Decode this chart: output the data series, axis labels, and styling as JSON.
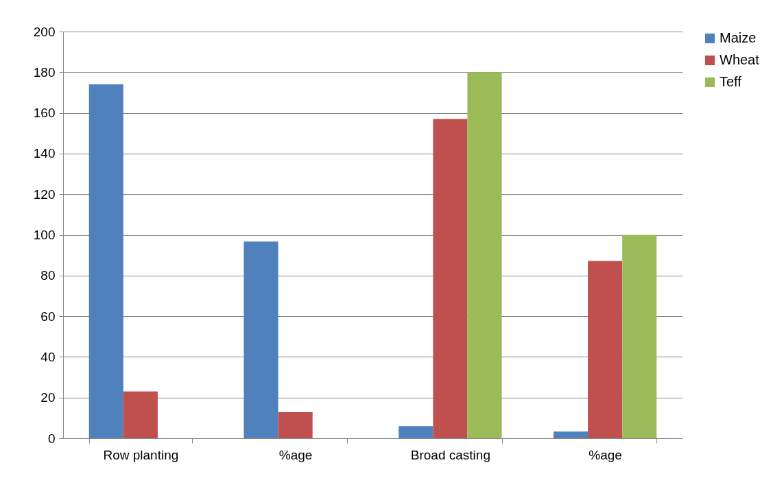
{
  "chart_data": {
    "type": "bar",
    "categories": [
      "Row planting",
      "%age",
      "Broad casting",
      "%age"
    ],
    "series": [
      {
        "name": "Maize",
        "color": "#4f81bd",
        "values": [
          174,
          96.7,
          6,
          3.3
        ]
      },
      {
        "name": "Wheat",
        "color": "#c0504d",
        "values": [
          23,
          12.8,
          157,
          87.2
        ]
      },
      {
        "name": "Teff",
        "color": "#9bbb59",
        "values": [
          0,
          0,
          180,
          100
        ]
      }
    ],
    "ylim": [
      0,
      200
    ],
    "yticks": [
      0,
      20,
      40,
      60,
      80,
      100,
      120,
      140,
      160,
      180,
      200
    ],
    "grid": "y",
    "legend": "right"
  }
}
